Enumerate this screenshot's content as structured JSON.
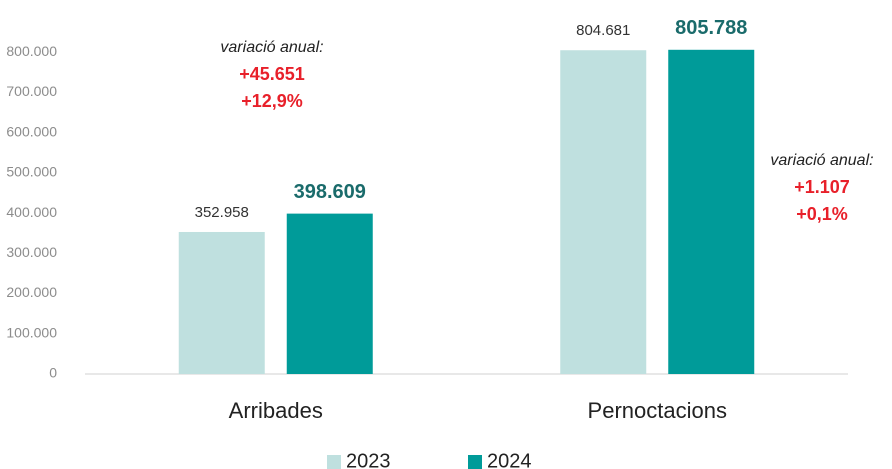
{
  "chart_data": {
    "type": "bar",
    "categories": [
      "Arribades",
      "Pernoctacions"
    ],
    "series": [
      {
        "name": "2023",
        "color": "#bfe0df",
        "values": [
          352958,
          804681
        ],
        "value_labels": [
          "352.958",
          "804.681"
        ]
      },
      {
        "name": "2024",
        "color": "#009b99",
        "values": [
          398609,
          805788
        ],
        "value_labels": [
          "398.609",
          "805.788"
        ]
      }
    ],
    "ylim": [
      0,
      850000
    ],
    "yticks": [
      0,
      {
        "value": 100000,
        "label": "100.000"
      },
      {
        "value": 200000,
        "label": "200.000"
      },
      {
        "value": 300000,
        "label": "300.000"
      },
      {
        "value": 400000,
        "label": "400.000"
      },
      {
        "value": 500000,
        "label": "500.000"
      },
      {
        "value": 600000,
        "label": "600.000"
      },
      {
        "value": 700000,
        "label": "700.000"
      },
      {
        "value": 800000,
        "label": "800.000"
      }
    ],
    "grid": false,
    "legend": "bottom",
    "annotations": [
      {
        "title": "variació anual:",
        "lines": [
          "+45.651",
          "+12,9%"
        ]
      },
      {
        "title": "variació anual:",
        "lines": [
          "+1.107",
          "+0,1%"
        ]
      }
    ]
  }
}
